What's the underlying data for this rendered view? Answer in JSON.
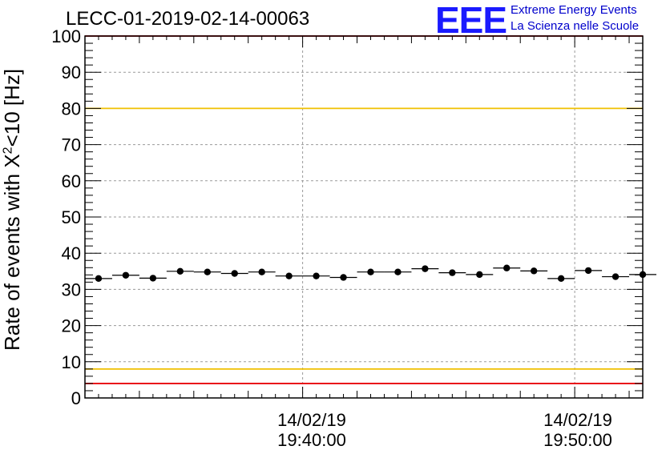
{
  "title": "LECC-01-2019-02-14-00063",
  "logo": {
    "text": "EEE",
    "line1": "Extreme Energy Events",
    "line2": "La Scienza nelle Scuole"
  },
  "chart_data": {
    "type": "scatter",
    "ylabel_main": "Rate of events with X",
    "ylabel_sup": "2",
    "ylabel_tail": "<10 [Hz]",
    "ylim": [
      0,
      100
    ],
    "yticks": [
      "0",
      "10",
      "20",
      "30",
      "40",
      "50",
      "60",
      "70",
      "80",
      "90",
      "100"
    ],
    "xlim": [
      "19:32:00",
      "19:52:30"
    ],
    "xticks": [
      {
        "date": "14/02/19",
        "time": "19:40:00"
      },
      {
        "date": "14/02/19",
        "time": "19:50:00"
      }
    ],
    "grid": true,
    "reference_lines": [
      {
        "y": 100,
        "color": "#e8000b"
      },
      {
        "y": 80,
        "color": "#f0c000"
      },
      {
        "y": 8,
        "color": "#f0c000"
      },
      {
        "y": 4,
        "color": "#e8000b"
      }
    ],
    "bin_width_seconds": 60,
    "series": [
      {
        "marker_color": "#000000",
        "x": [
          "19:32:00",
          "19:33:00",
          "19:34:00",
          "19:35:00",
          "19:36:00",
          "19:37:00",
          "19:38:00",
          "19:39:00",
          "19:40:00",
          "19:41:00",
          "19:42:00",
          "19:43:00",
          "19:44:00",
          "19:45:00",
          "19:46:00",
          "19:47:00",
          "19:48:00",
          "19:49:00",
          "19:50:00",
          "19:51:00",
          "19:52:00"
        ],
        "y": [
          33.0,
          33.9,
          33.1,
          35.0,
          34.8,
          34.4,
          34.8,
          33.7,
          33.7,
          33.3,
          34.8,
          34.8,
          35.7,
          34.6,
          34.1,
          35.9,
          35.1,
          33.0,
          35.2,
          33.5,
          34.1
        ]
      }
    ]
  }
}
